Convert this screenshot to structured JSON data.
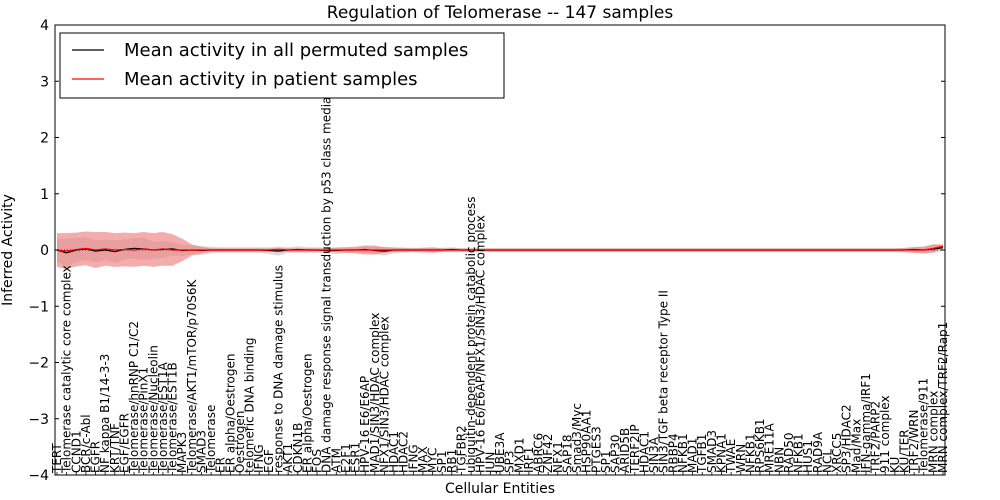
{
  "chart_data": {
    "type": "line",
    "title": "Regulation of Telomerase -- 147 samples",
    "xlabel": "Cellular Entities",
    "ylabel": "Inferred Activity",
    "ylim": [
      -4,
      4
    ],
    "yticks": [
      -4,
      -3,
      -2,
      -1,
      0,
      1,
      2,
      3,
      4
    ],
    "grid": false,
    "legend_position": "top-left",
    "x_tick_labels": [
      {
        "i": 0,
        "label": "TERT"
      },
      {
        "i": 1,
        "label": "Telomerase catalytic core complex"
      },
      {
        "i": 2,
        "label": "CCND1"
      },
      {
        "i": 3,
        "label": "BCR/c-Abl"
      },
      {
        "i": 4,
        "label": "EGFR"
      },
      {
        "i": 5,
        "label": "NF kappa B1/14-3-3"
      },
      {
        "i": 6,
        "label": "KRT/TNF"
      },
      {
        "i": 7,
        "label": "EGF/EGFR"
      },
      {
        "i": 8,
        "label": "Telomerase/hnRNP C1/C2"
      },
      {
        "i": 9,
        "label": "Telomerase/PinX1"
      },
      {
        "i": 10,
        "label": "Telomerase/Nucleolin"
      },
      {
        "i": 11,
        "label": "Telomerase/EST1A"
      },
      {
        "i": 12,
        "label": "Telomerase/EST1B"
      },
      {
        "i": 13,
        "label": "MAPK3"
      },
      {
        "i": 14,
        "label": "Telomerase/AKT1/mTOR/p70S6K"
      },
      {
        "i": 15,
        "label": "SMAD3"
      },
      {
        "i": 16,
        "label": "Telomerase"
      },
      {
        "i": 17,
        "label": "ER"
      },
      {
        "i": 18,
        "label": "ER alpha/Oestrogen"
      },
      {
        "i": 19,
        "label": "Oestrogen"
      },
      {
        "i": 20,
        "label": "telomeric DNA binding"
      },
      {
        "i": 21,
        "label": "IFNG"
      },
      {
        "i": 22,
        "label": "EGF"
      },
      {
        "i": 23,
        "label": "response to DNA damage stimulus"
      },
      {
        "i": 24,
        "label": "AKT1"
      },
      {
        "i": 25,
        "label": "CDKN1B"
      },
      {
        "i": 26,
        "label": "ER alpha/Oestrogen"
      },
      {
        "i": 27,
        "label": "FOS"
      },
      {
        "i": 28,
        "label": "DNA damage response signal transduction by p53 class mediator"
      },
      {
        "i": 29,
        "label": "ATM"
      },
      {
        "i": 30,
        "label": "E2F1"
      },
      {
        "i": 31,
        "label": "ESR1"
      },
      {
        "i": 32,
        "label": "HPV-16 E6/E6AP"
      },
      {
        "i": 33,
        "label": "MAD1/SIN3/HDAC complex"
      },
      {
        "i": 34,
        "label": "NFX1/SIN3/HDAC complex"
      },
      {
        "i": 35,
        "label": "HDAC1"
      },
      {
        "i": 36,
        "label": "HDAC2"
      },
      {
        "i": 37,
        "label": "IFNG"
      },
      {
        "i": 38,
        "label": "MAX"
      },
      {
        "i": 39,
        "label": "MYC"
      },
      {
        "i": 40,
        "label": "SP1"
      },
      {
        "i": 41,
        "label": "RB1"
      },
      {
        "i": 42,
        "label": "TGFBR2"
      },
      {
        "i": 43,
        "label": "ubiquitin-dependent protein catabolic process"
      },
      {
        "i": 44,
        "label": "HPV-16 E6/E6AP/NFX1/SIN3/HDAC complex"
      },
      {
        "i": 45,
        "label": "JUN"
      },
      {
        "i": 46,
        "label": "UBE3A"
      },
      {
        "i": 47,
        "label": "SP3"
      },
      {
        "i": 48,
        "label": "MXD1"
      },
      {
        "i": 49,
        "label": "IRF1"
      },
      {
        "i": 50,
        "label": "ABRC6"
      },
      {
        "i": 51,
        "label": "ZNF42"
      },
      {
        "i": 52,
        "label": "NFX1"
      },
      {
        "i": 53,
        "label": "SAP18"
      },
      {
        "i": 54,
        "label": "Smad3/Myc"
      },
      {
        "i": 55,
        "label": "HSP90AA1"
      },
      {
        "i": 56,
        "label": "PTGES3"
      },
      {
        "i": 57,
        "label": "SP1"
      },
      {
        "i": 58,
        "label": "SAP30"
      },
      {
        "i": 59,
        "label": "ARID5B"
      },
      {
        "i": 60,
        "label": "TERF2IP"
      },
      {
        "i": 61,
        "label": "HDAC1"
      },
      {
        "i": 62,
        "label": "SIN3A"
      },
      {
        "i": 63,
        "label": "SIN3/TGF beta receptor Type II"
      },
      {
        "i": 64,
        "label": "RBBP4"
      },
      {
        "i": 65,
        "label": "NFKB1"
      },
      {
        "i": 66,
        "label": "MAD1"
      },
      {
        "i": 67,
        "label": "TGFB1"
      },
      {
        "i": 68,
        "label": "SMAD3"
      },
      {
        "i": 69,
        "label": "KPNA1"
      },
      {
        "i": 70,
        "label": "TWAE"
      },
      {
        "i": 71,
        "label": "WRN"
      },
      {
        "i": 72,
        "label": "NFKB1"
      },
      {
        "i": 73,
        "label": "RPS6KB1"
      },
      {
        "i": 74,
        "label": "MRE11A"
      },
      {
        "i": 75,
        "label": "NBN"
      },
      {
        "i": 76,
        "label": "RAD50"
      },
      {
        "i": 77,
        "label": "NFKB1"
      },
      {
        "i": 78,
        "label": "HUS1"
      },
      {
        "i": 79,
        "label": "RAD9A"
      },
      {
        "i": 80,
        "label": "NCL"
      },
      {
        "i": 81,
        "label": "XRCC5"
      },
      {
        "i": 82,
        "label": "SP3/HDAC2"
      },
      {
        "i": 83,
        "label": "Mad/Max"
      },
      {
        "i": 84,
        "label": "IFN-gamma/IRF1"
      },
      {
        "i": 85,
        "label": "TRF2/PARP2"
      },
      {
        "i": 86,
        "label": "911 complex"
      },
      {
        "i": 87,
        "label": "KU"
      },
      {
        "i": 88,
        "label": "KU/TER"
      },
      {
        "i": 89,
        "label": "TRF2/WRN"
      },
      {
        "i": 90,
        "label": "Telomerase/911"
      },
      {
        "i": 91,
        "label": "MRN complex"
      },
      {
        "i": 92,
        "label": "MRN complex/TRF2/Rap1"
      }
    ],
    "series": [
      {
        "name": "Mean activity in all permuted samples",
        "color": "#000000",
        "band_color": "#bbbbbb",
        "values": [
          0.0,
          -0.05,
          0.0,
          0.02,
          -0.02,
          0.0,
          -0.03,
          0.01,
          0.03,
          0.02,
          0.0,
          0.01,
          0.02,
          -0.01,
          0.0,
          -0.01,
          0.0,
          0.0,
          0.0,
          0.0,
          0.0,
          0.0,
          -0.01,
          -0.02,
          0.0,
          0.01,
          0.0,
          0.0,
          -0.01,
          -0.01,
          0.0,
          0.0,
          0.01,
          -0.01,
          -0.02,
          0.0,
          0.0,
          0.0,
          0.0,
          0.0,
          0.0,
          0.01,
          0.0,
          0.0,
          0.0,
          0.0,
          0.0,
          0.0,
          0.0,
          0.0,
          0.0,
          0.0,
          0.0,
          0.0,
          0.0,
          0.0,
          0.0,
          0.0,
          0.0,
          0.0,
          0.0,
          0.0,
          0.0,
          0.0,
          0.0,
          0.0,
          0.0,
          0.0,
          0.0,
          0.0,
          0.0,
          0.0,
          0.0,
          0.0,
          0.0,
          0.0,
          0.0,
          0.0,
          0.0,
          0.0,
          0.0,
          0.0,
          0.0,
          0.0,
          0.0,
          0.0,
          0.0,
          0.0,
          0.0,
          0.01,
          0.0,
          0.02,
          0.04
        ],
        "band": [
          0.2,
          0.25,
          0.22,
          0.2,
          0.2,
          0.18,
          0.2,
          0.18,
          0.18,
          0.2,
          0.15,
          0.15,
          0.12,
          0.1,
          0.08,
          0.08,
          0.06,
          0.05,
          0.05,
          0.05,
          0.05,
          0.05,
          0.06,
          0.08,
          0.05,
          0.06,
          0.05,
          0.05,
          0.05,
          0.06,
          0.05,
          0.04,
          0.06,
          0.06,
          0.08,
          0.05,
          0.04,
          0.04,
          0.04,
          0.04,
          0.04,
          0.04,
          0.03,
          0.03,
          0.03,
          0.03,
          0.03,
          0.03,
          0.03,
          0.03,
          0.03,
          0.03,
          0.03,
          0.03,
          0.03,
          0.03,
          0.03,
          0.03,
          0.03,
          0.03,
          0.03,
          0.03,
          0.03,
          0.03,
          0.03,
          0.03,
          0.03,
          0.03,
          0.03,
          0.03,
          0.03,
          0.03,
          0.03,
          0.03,
          0.03,
          0.03,
          0.03,
          0.03,
          0.03,
          0.03,
          0.03,
          0.03,
          0.03,
          0.03,
          0.03,
          0.03,
          0.03,
          0.03,
          0.03,
          0.05,
          0.06,
          0.08,
          0.05
        ]
      },
      {
        "name": "Mean activity in patient samples",
        "color": "#ff0000",
        "band_color": "#f08080",
        "values": [
          0.0,
          -0.02,
          0.01,
          0.03,
          0.0,
          0.02,
          0.0,
          0.01,
          0.0,
          0.02,
          0.0,
          0.02,
          0.0,
          0.0,
          0.0,
          0.0,
          0.0,
          0.0,
          0.0,
          0.0,
          0.0,
          0.0,
          0.0,
          0.01,
          0.0,
          0.0,
          0.0,
          0.0,
          0.0,
          0.0,
          0.0,
          0.0,
          0.0,
          0.0,
          0.0,
          0.0,
          0.0,
          0.0,
          0.0,
          0.0,
          0.0,
          0.0,
          0.0,
          0.0,
          0.0,
          0.0,
          0.0,
          0.0,
          0.0,
          0.0,
          0.0,
          0.0,
          0.0,
          0.0,
          0.0,
          0.0,
          0.0,
          0.0,
          0.0,
          0.0,
          0.0,
          0.0,
          0.0,
          0.0,
          0.0,
          0.0,
          0.0,
          0.0,
          0.0,
          0.0,
          0.0,
          0.0,
          0.0,
          0.0,
          0.0,
          0.0,
          0.0,
          0.0,
          0.0,
          0.0,
          0.0,
          0.0,
          0.0,
          0.0,
          0.0,
          0.0,
          0.0,
          0.0,
          0.0,
          0.0,
          0.0,
          0.03,
          0.07
        ],
        "band": [
          0.3,
          0.32,
          0.3,
          0.3,
          0.32,
          0.3,
          0.3,
          0.3,
          0.3,
          0.3,
          0.3,
          0.3,
          0.28,
          0.2,
          0.1,
          0.06,
          0.03,
          0.03,
          0.03,
          0.03,
          0.03,
          0.03,
          0.03,
          0.03,
          0.03,
          0.03,
          0.03,
          0.03,
          0.03,
          0.04,
          0.05,
          0.06,
          0.08,
          0.08,
          0.05,
          0.04,
          0.04,
          0.03,
          0.04,
          0.05,
          0.03,
          0.03,
          0.03,
          0.03,
          0.03,
          0.03,
          0.03,
          0.03,
          0.03,
          0.03,
          0.03,
          0.03,
          0.03,
          0.03,
          0.03,
          0.03,
          0.03,
          0.03,
          0.03,
          0.03,
          0.03,
          0.03,
          0.03,
          0.03,
          0.03,
          0.03,
          0.03,
          0.03,
          0.03,
          0.03,
          0.03,
          0.03,
          0.03,
          0.03,
          0.03,
          0.03,
          0.03,
          0.03,
          0.03,
          0.03,
          0.03,
          0.03,
          0.03,
          0.03,
          0.03,
          0.03,
          0.03,
          0.03,
          0.04,
          0.05,
          0.06,
          0.07,
          0.03
        ]
      }
    ]
  }
}
